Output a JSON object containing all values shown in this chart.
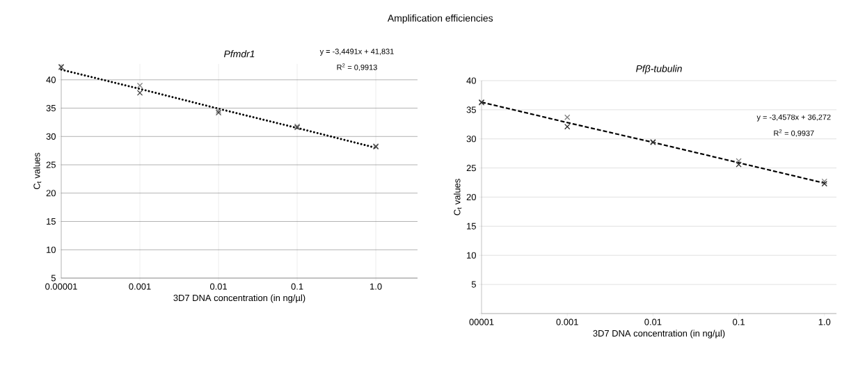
{
  "chart_data": [
    {
      "type": "scatter",
      "title": "Pfmdr1",
      "xlabel": "3D7 DNA concentration (in ng/µl)",
      "ylabel": "C$_{t}$ values",
      "annotations": [
        "Amplification efficiencies",
        "y = -3,4491x + 41,831",
        "R$^{2}$ = 0,9913"
      ],
      "categories": [
        "0.00001",
        "0.001",
        "0.01",
        "0.1",
        "1.0"
      ],
      "series": [
        {
          "color": "#7f7f7f",
          "values": [
            42.2,
            39.0,
            34.5,
            31.8,
            28.3
          ]
        },
        {
          "color": "#404040",
          "values": [
            42.3,
            37.7,
            34.2,
            31.6,
            28.2
          ]
        },
        {
          "type": "line",
          "color": "#000000",
          "line_style": "dotted",
          "marker": "none",
          "values": [
            41.8,
            38.4,
            34.9,
            31.5,
            28.0
          ]
        }
      ],
      "ylim": [
        5,
        42.8
      ],
      "yticks": [
        5,
        10,
        15,
        20,
        25,
        30,
        35,
        40
      ],
      "grid": true,
      "marker": "cross"
    },
    {
      "type": "scatter",
      "title": "Pfβ-tubulin",
      "xlabel": "3D7 DNA concentration (in ng/µl)",
      "ylabel": "C$_{t}$ values",
      "annotations": [
        "y = -3,4578x + 36,272",
        "R$^{2}$ = 0,9937"
      ],
      "categories": [
        "00001",
        "0.001",
        "0.01",
        "0.1",
        "1.0"
      ],
      "series": [
        {
          "color": "#7f7f7f",
          "values": [
            36.2,
            33.7,
            29.5,
            26.2,
            22.7
          ]
        },
        {
          "color": "#262626",
          "values": [
            36.3,
            32.1,
            29.4,
            25.6,
            22.3
          ]
        },
        {
          "type": "line",
          "color": "#000000",
          "line_style": "dashed",
          "marker": "none",
          "values": [
            36.3,
            32.8,
            29.4,
            25.9,
            22.4
          ]
        }
      ],
      "ylim": [
        0,
        40
      ],
      "yticks": [
        {
          "value": 0,
          "label": null
        },
        5,
        10,
        15,
        20,
        25,
        30,
        35,
        40
      ],
      "grid": "y",
      "marker": "cross"
    }
  ]
}
